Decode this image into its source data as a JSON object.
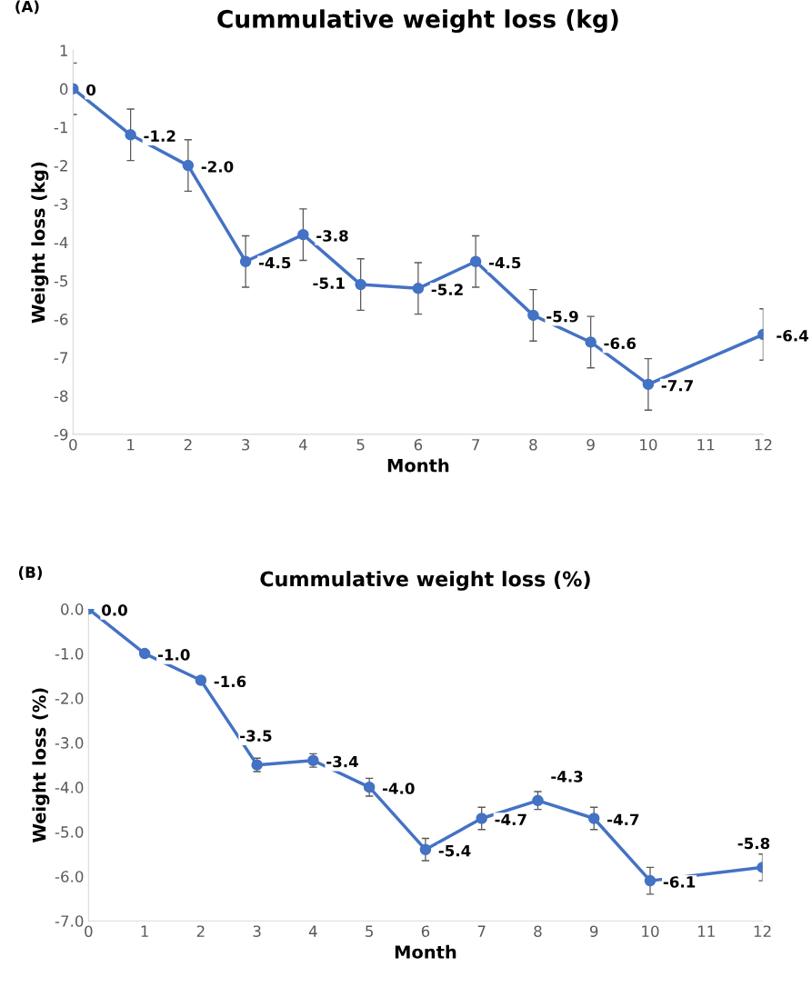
{
  "chart_data": [
    {
      "type": "line",
      "title": "Cummulative weight loss (kg)",
      "xlabel": "Month",
      "ylabel": "Weight loss (kg)",
      "annotations": [
        "(A)"
      ],
      "categories": [
        "0",
        "1",
        "2",
        "3",
        "4",
        "5",
        "6",
        "7",
        "8",
        "9",
        "10",
        "11",
        "12"
      ],
      "series": [
        {
          "color": "#4472c4",
          "values": [
            0,
            -1.2,
            -2.0,
            -4.5,
            -3.8,
            -5.1,
            -5.2,
            -4.5,
            -5.9,
            -6.6,
            -7.7,
            null,
            -6.4
          ],
          "value_labels": [
            "0",
            "-1.2",
            "-2.0",
            "-4.5",
            "-3.8",
            "-5.1",
            "-5.2",
            "-4.5",
            "-5.9",
            "-6.6",
            "-7.7",
            null,
            "-6.4"
          ],
          "errors": [
            0.67,
            0.67,
            0.67,
            0.67,
            0.67,
            0.67,
            0.67,
            0.67,
            0.67,
            0.67,
            0.67,
            null,
            0.67
          ]
        }
      ],
      "ylim": [
        -9,
        1
      ],
      "yticks": [
        -9,
        -8,
        -7,
        -6,
        -5,
        -4,
        -3,
        -2,
        -1,
        0,
        1
      ],
      "grid": false,
      "legend": false,
      "marker": "circle",
      "line_style": "solid"
    },
    {
      "type": "line",
      "title": "Cummulative weight loss (%)",
      "xlabel": "Month",
      "ylabel": "Weight loss (%)",
      "annotations": [
        "(B)"
      ],
      "categories": [
        "0",
        "1",
        "2",
        "3",
        "4",
        "5",
        "6",
        "7",
        "8",
        "9",
        "10",
        "11",
        "12"
      ],
      "series": [
        {
          "color": "#4472c4",
          "values": [
            0.0,
            -1.0,
            -1.6,
            -3.5,
            -3.4,
            -4.0,
            -5.4,
            -4.7,
            -4.3,
            -4.7,
            -6.1,
            null,
            -5.8
          ],
          "value_labels": [
            "0.0",
            "-1.0",
            "-1.6",
            "-3.5",
            "-3.4",
            "-4.0",
            "-5.4",
            "-4.7",
            "-4.3",
            "-4.7",
            "-6.1",
            null,
            "-5.8"
          ],
          "errors": [
            null,
            null,
            null,
            0.15,
            0.15,
            0.2,
            0.25,
            0.25,
            0.2,
            0.25,
            0.3,
            null,
            0.3
          ]
        }
      ],
      "ylim": [
        -7,
        0
      ],
      "yticks": [
        {
          "value": -7,
          "label": "-7.0"
        },
        {
          "value": -6,
          "label": "-6.0"
        },
        {
          "value": -5,
          "label": "-5.0"
        },
        {
          "value": -4,
          "label": "-4.0"
        },
        {
          "value": -3,
          "label": "-3.0"
        },
        {
          "value": -2,
          "label": "-2.0"
        },
        {
          "value": -1,
          "label": "-1.0"
        },
        {
          "value": 0,
          "label": "0.0"
        }
      ],
      "grid": false,
      "legend": false,
      "marker": "circle",
      "line_style": "solid"
    }
  ]
}
